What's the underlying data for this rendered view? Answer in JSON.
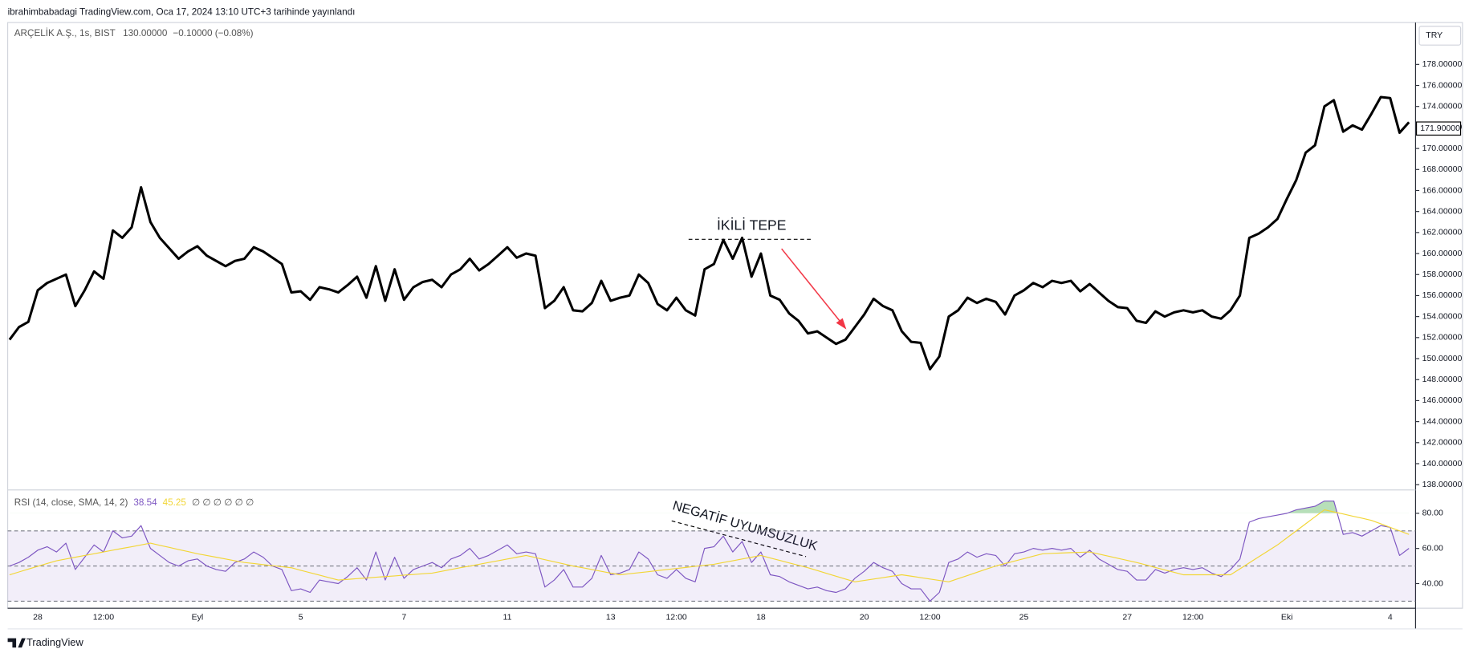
{
  "header": {
    "publish_note": "ibrahimbabadagi TradingView.com, Oca 17, 2024 13:10 UTC+3 tarihinde yayınlandı",
    "symbol_info": "ARÇELİK A.Ş., 1s, BIST",
    "price": "130.00000",
    "change": "−0.10000 (−0.08%)",
    "currency": "TRY"
  },
  "footer": {
    "brand": "TradingView"
  },
  "chart_data": [
    {
      "type": "line",
      "color": "#000000",
      "values": [
        151.8,
        153.0,
        153.5,
        156.5,
        157.2,
        157.6,
        158,
        155,
        156.5,
        158.3,
        157.6,
        162.2,
        161.5,
        162.5,
        166.3,
        163,
        161.5,
        160.5,
        159.5,
        160.2,
        160.7,
        159.8,
        159.3,
        158.8,
        159.3,
        159.5,
        160.6,
        160.2,
        159.6,
        159,
        156.3,
        156.4,
        155.6,
        156.8,
        156.6,
        156.3,
        157,
        157.8,
        155.8,
        158.8,
        155.5,
        158.5,
        155.6,
        156.8,
        157.3,
        157.5,
        156.8,
        158,
        158.5,
        159.5,
        158.4,
        159,
        159.8,
        160.6,
        159.6,
        160,
        159.8,
        154.8,
        155.5,
        156.8,
        154.6,
        154.5,
        155.3,
        157.4,
        155.5,
        155.8,
        156,
        158,
        157.2,
        155.2,
        154.6,
        155.8,
        154.6,
        154.1,
        158.5,
        159,
        161.3,
        159.5,
        161.5,
        157.8,
        160,
        156,
        155.6,
        154.3,
        153.6,
        152.4,
        152.6,
        152,
        151.4,
        151.8,
        153,
        154.2,
        155.7,
        155,
        154.6,
        152.6,
        151.6,
        151.5,
        149,
        150.2,
        154,
        154.6,
        155.8,
        155.3,
        155.7,
        155.4,
        154.2,
        156,
        156.5,
        157.2,
        156.8,
        157.4,
        157.2,
        157.4,
        156.4,
        157.1,
        156.3,
        155.5,
        154.9,
        154.8,
        153.6,
        153.4,
        154.5,
        154,
        154.4,
        154.6,
        154.4,
        154.6,
        154,
        153.8,
        154.6,
        156,
        161.5,
        161.9,
        162.5,
        163.3,
        165.2,
        167,
        169.6,
        170.3,
        174,
        174.6,
        171.6,
        172.2,
        171.8,
        173.3,
        174.9,
        174.8,
        171.5,
        172.5
      ],
      "ylim": [
        137.5,
        181.9
      ],
      "yticks": [
        {
          "value": 138,
          "label": "138.00000"
        },
        {
          "value": 140,
          "label": "140.00000"
        },
        {
          "value": 142,
          "label": "142.00000"
        },
        {
          "value": 144,
          "label": "144.00000"
        },
        {
          "value": 146,
          "label": "146.00000"
        },
        {
          "value": 148,
          "label": "148.00000"
        },
        {
          "value": 150,
          "label": "150.00000"
        },
        {
          "value": 152,
          "label": "152.00000"
        },
        {
          "value": 154,
          "label": "154.00000"
        },
        {
          "value": 156,
          "label": "156.00000"
        },
        {
          "value": 158,
          "label": "158.00000"
        },
        {
          "value": 160,
          "label": "160.00000"
        },
        {
          "value": 162,
          "label": "162.00000"
        },
        {
          "value": 164,
          "label": "164.00000"
        },
        {
          "value": 166,
          "label": "166.00000"
        },
        {
          "value": 168,
          "label": "168.00000"
        },
        {
          "value": 170,
          "label": "170.00000"
        },
        {
          "value": 172,
          "label": "172.00000"
        },
        {
          "value": 174,
          "label": "174.00000"
        },
        {
          "value": 176,
          "label": "176.00000"
        },
        {
          "value": 178,
          "label": "178.00000"
        }
      ],
      "last_price": {
        "value": 171.9,
        "label": "171.90000"
      },
      "annotations": [
        "İKİLİ TEPE"
      ]
    },
    {
      "type": "line",
      "title": "RSI (14, close, SMA, 14, 2)",
      "extra": "∅ ∅ ∅ ∅ ∅ ∅",
      "categories": [
        null,
        null,
        null,
        "28",
        null,
        null,
        null,
        null,
        null,
        null,
        "12:00",
        null,
        null,
        null,
        null,
        null,
        null,
        null,
        null,
        null,
        "Eyl",
        null,
        null,
        null,
        null,
        null,
        null,
        null,
        null,
        null,
        null,
        "5",
        null,
        null,
        null,
        null,
        null,
        null,
        null,
        null,
        null,
        null,
        "7",
        null,
        null,
        null,
        null,
        null,
        null,
        null,
        null,
        null,
        null,
        "11",
        null,
        null,
        null,
        null,
        null,
        null,
        null,
        null,
        null,
        null,
        "13",
        null,
        null,
        null,
        null,
        null,
        null,
        "12:00",
        null,
        null,
        null,
        null,
        null,
        null,
        null,
        null,
        "18",
        null,
        null,
        null,
        null,
        null,
        null,
        null,
        null,
        null,
        null,
        "20",
        null,
        null,
        null,
        null,
        null,
        null,
        "12:00",
        null,
        null,
        null,
        null,
        null,
        null,
        null,
        null,
        null,
        "25",
        null,
        null,
        null,
        null,
        null,
        null,
        null,
        null,
        null,
        null,
        "27",
        null,
        null,
        null,
        null,
        null,
        null,
        "12:00",
        null,
        null,
        null,
        null,
        null,
        null,
        null,
        null,
        null,
        "Eki",
        null,
        null,
        null,
        null,
        null,
        null,
        null,
        null,
        null,
        null,
        "4",
        null,
        null
      ],
      "series": [
        {
          "color": "#7e57c2",
          "legend_value": 38.54,
          "values": [
            50,
            52,
            55,
            59,
            61,
            58,
            63,
            48,
            55,
            62,
            58,
            70,
            66,
            67,
            73,
            60,
            56,
            52,
            50,
            53,
            54,
            50,
            48,
            47,
            52,
            54,
            58,
            55,
            50,
            48,
            36,
            37,
            35,
            42,
            41,
            40,
            44,
            49,
            42,
            58,
            42,
            55,
            43,
            48,
            50,
            52,
            49,
            54,
            56,
            60,
            54,
            56,
            59,
            62,
            57,
            58,
            57,
            38,
            42,
            48,
            38,
            38,
            43,
            56,
            45,
            46,
            48,
            58,
            54,
            45,
            43,
            48,
            43,
            41,
            60,
            61,
            67,
            58,
            64,
            52,
            58,
            45,
            44,
            41,
            39,
            37,
            38,
            36,
            35,
            37,
            43,
            47,
            52,
            49,
            47,
            40,
            37,
            37,
            30,
            35,
            52,
            54,
            58,
            55,
            57,
            56,
            50,
            57,
            58,
            60,
            59,
            60,
            59,
            60,
            55,
            59,
            54,
            51,
            48,
            47,
            42,
            42,
            48,
            46,
            48,
            49,
            48,
            49,
            46,
            44,
            48,
            54,
            75,
            77,
            78,
            79,
            80,
            82,
            83,
            84,
            87,
            87,
            68,
            69,
            67,
            70,
            73,
            72,
            56,
            60
          ]
        },
        {
          "color": "#f2d637",
          "legend_value": 45.25,
          "values": [
            45,
            46.6,
            48.2,
            49.8,
            51.4,
            53,
            54,
            55,
            56,
            57,
            58,
            59,
            60,
            61,
            62,
            63,
            61.8,
            60.6,
            59.4,
            58.2,
            57,
            56,
            55,
            54,
            53,
            52,
            51.4,
            50.8,
            50.2,
            49.6,
            49,
            47.6,
            46.2,
            44.8,
            43.4,
            42,
            42.4,
            42.8,
            43.2,
            43.6,
            44,
            44.4,
            44.8,
            45.2,
            45.6,
            46,
            47,
            48,
            49,
            50,
            51,
            52,
            53,
            54,
            55,
            56,
            54.8,
            53.6,
            52.4,
            51.2,
            50,
            49,
            48,
            47,
            46,
            45,
            45.6,
            46.2,
            46.8,
            47.4,
            48,
            48.6,
            49.2,
            49.8,
            50.4,
            51,
            52,
            53,
            54,
            55,
            56,
            54.6,
            53.2,
            51.8,
            50.4,
            49,
            47.4,
            45.8,
            44.2,
            42.6,
            41,
            41.8,
            42.6,
            43.4,
            44.2,
            45,
            44.2,
            43.4,
            42.6,
            41.8,
            41,
            42.8,
            44.6,
            46.4,
            48.2,
            50,
            51.4,
            52.8,
            54.2,
            55.6,
            57,
            57.2,
            57.4,
            57.6,
            57.8,
            58,
            56.8,
            55.6,
            54.4,
            53.2,
            52,
            50.6,
            49.2,
            47.8,
            46.4,
            45,
            45,
            45,
            45,
            45,
            45,
            48.4,
            51.8,
            55.2,
            58.6,
            62,
            66,
            70,
            74,
            78,
            82,
            80.8,
            79.6,
            78.4,
            77.2,
            76,
            74,
            72,
            70,
            68
          ]
        }
      ],
      "ylim": [
        26,
        93.3
      ],
      "yticks": [
        {
          "value": 40,
          "label": "40.00"
        },
        {
          "value": 60,
          "label": "60.00"
        },
        {
          "value": 80,
          "label": "80.00"
        }
      ],
      "bands": [
        30,
        50,
        70
      ],
      "overbought": 80,
      "annotations": [
        "NEGATİF UYUMSUZLUK"
      ]
    }
  ]
}
